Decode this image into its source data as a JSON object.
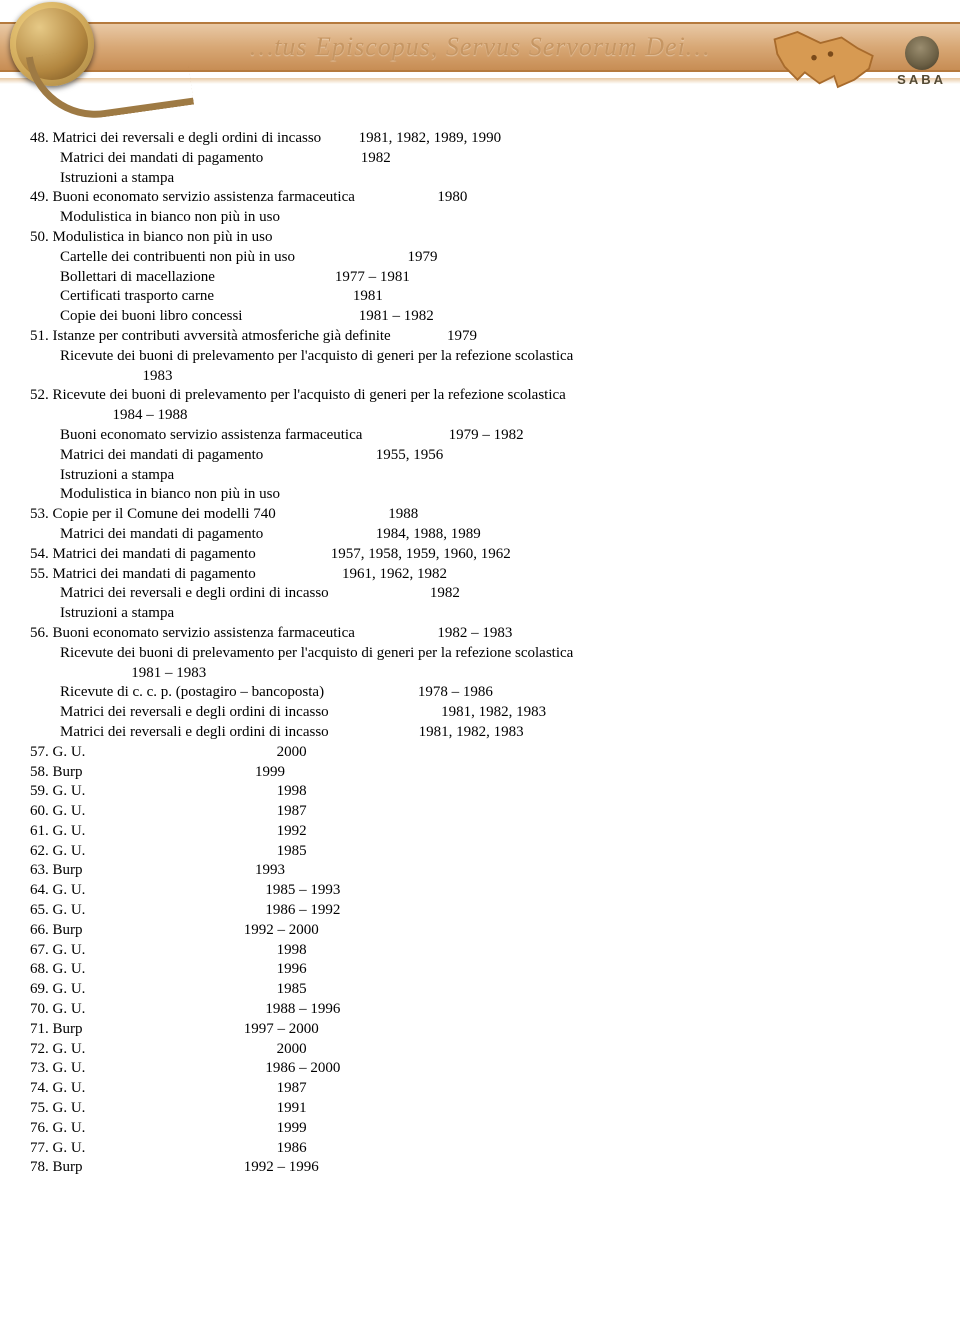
{
  "header": {
    "latin": "…tus  Episcopus, Servus  Servorum  Dei…",
    "saba": "SABA"
  },
  "lines": [
    "48. Matrici dei reversali e degli ordini di incasso          1981, 1982, 1989, 1990",
    "        Matrici dei mandati di pagamento                          1982",
    "        Istruzioni a stampa",
    "49. Buoni economato servizio assistenza farmaceutica                      1980",
    "        Modulistica in bianco non più in uso",
    "50. Modulistica in bianco non più in uso",
    "        Cartelle dei contribuenti non più in uso                              1979",
    "        Bollettari di macellazione                                1977 – 1981",
    "        Certificati trasporto carne                                     1981",
    "        Copie dei buoni libro concessi                               1981 – 1982",
    "51. Istanze per contributi avversità atmosferiche già definite               1979",
    "        Ricevute dei buoni di prelevamento per l'acquisto di generi per la refezione scolastica",
    "                              1983",
    "52. Ricevute dei buoni di prelevamento per l'acquisto di generi per la refezione scolastica",
    "                      1984 – 1988",
    "        Buoni economato servizio assistenza farmaceutica                       1979 – 1982",
    "        Matrici dei mandati di pagamento                              1955, 1956",
    "        Istruzioni a stampa",
    "        Modulistica in bianco non più in uso",
    "53. Copie per il Comune dei modelli 740                              1988",
    "        Matrici dei mandati di pagamento                              1984, 1988, 1989",
    "54. Matrici dei mandati di pagamento                    1957, 1958, 1959, 1960, 1962",
    "55. Matrici dei mandati di pagamento                       1961, 1962, 1982",
    "        Matrici dei reversali e degli ordini di incasso                           1982",
    "        Istruzioni a stampa",
    "56. Buoni economato servizio assistenza farmaceutica                      1982 – 1983",
    "        Ricevute dei buoni di prelevamento per l'acquisto di generi per la refezione scolastica",
    "                           1981 – 1983",
    "        Ricevute di c. c. p. (postagiro – bancoposta)                         1978 – 1986",
    "        Matrici dei reversali e degli ordini di incasso                              1981, 1982, 1983",
    "        Matrici dei reversali e degli ordini di incasso                        1981, 1982, 1983",
    "57. G. U.                                                   2000",
    "58. Burp                                              1999",
    "59. G. U.                                                   1998",
    "60. G. U.                                                   1987",
    "61. G. U.                                                   1992",
    "62. G. U.                                                   1985",
    "63. Burp                                              1993",
    "64. G. U.                                                1985 – 1993",
    "65. G. U.                                                1986 – 1992",
    "66. Burp                                           1992 – 2000",
    "67. G. U.                                                   1998",
    "68. G. U.                                                   1996",
    "69. G. U.                                                   1985",
    "70. G. U.                                                1988 – 1996",
    "71. Burp                                           1997 – 2000",
    "72. G. U.                                                   2000",
    "73. G. U.                                                1986 – 2000",
    "74. G. U.                                                   1987",
    "75. G. U.                                                   1991",
    "76. G. U.                                                   1999",
    "77. G. U.                                                   1986",
    "78. Burp                                           1992 – 1996"
  ]
}
